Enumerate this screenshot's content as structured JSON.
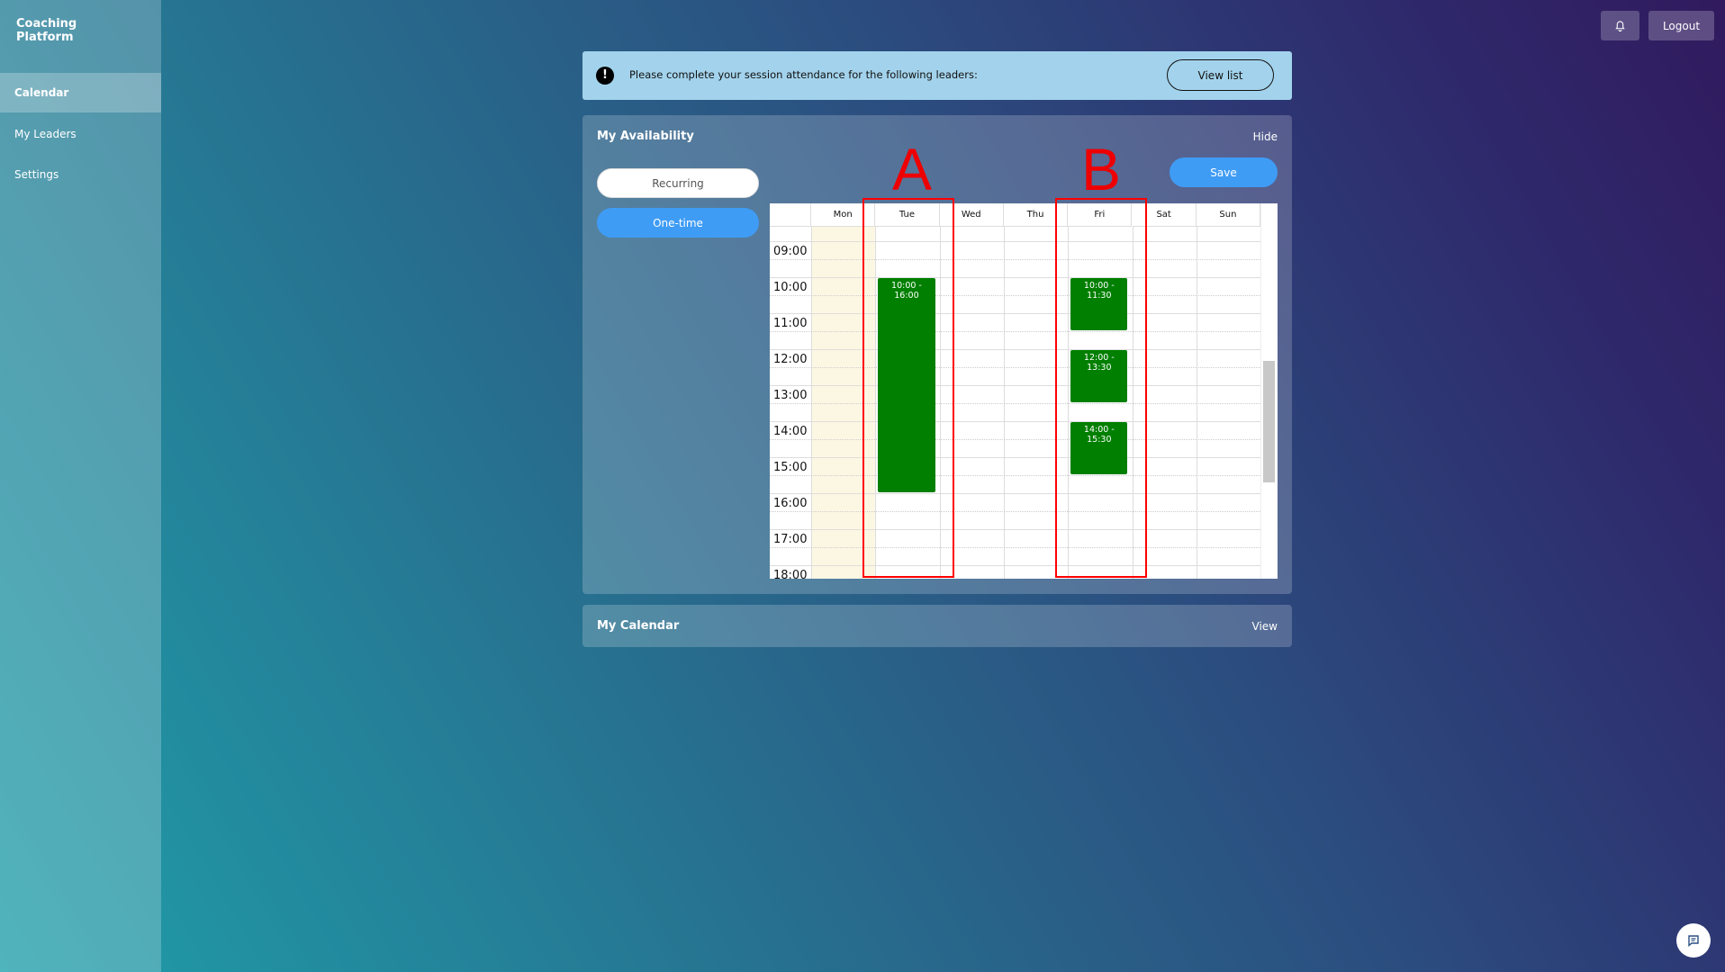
{
  "sidebar": {
    "brand": "Coaching Platform",
    "items": [
      {
        "label": "Calendar",
        "active": true
      },
      {
        "label": "My Leaders"
      },
      {
        "label": "Settings"
      }
    ]
  },
  "topbar": {
    "bell_icon": "bell-icon",
    "logout": "Logout"
  },
  "alert": {
    "icon": "exclamation-icon",
    "text": "Please complete your session attendance for the following leaders:",
    "button": "View list"
  },
  "availability": {
    "title": "My Availability",
    "hide": "Hide",
    "save": "Save",
    "modes": [
      {
        "label": "Recurring",
        "selected": false
      },
      {
        "label": "One-time",
        "selected": true
      }
    ],
    "days": [
      "Mon",
      "Tue",
      "Wed",
      "Thu",
      "Fri",
      "Sat",
      "Sun"
    ],
    "hours": [
      "09:00",
      "10:00",
      "11:00",
      "12:00",
      "13:00",
      "14:00",
      "15:00",
      "16:00",
      "17:00",
      "18:00"
    ],
    "events": [
      {
        "day": "Tue",
        "start": "10:00",
        "end": "16:00",
        "label": "10:00 - 16:00"
      },
      {
        "day": "Fri",
        "start": "10:00",
        "end": "11:30",
        "label": "10:00 - 11:30"
      },
      {
        "day": "Fri",
        "start": "12:00",
        "end": "13:30",
        "label": "12:00 - 13:30"
      },
      {
        "day": "Fri",
        "start": "14:00",
        "end": "15:30",
        "label": "14:00 - 15:30"
      }
    ],
    "event_color": "#007f00",
    "today_color": "#fcf7e3",
    "annotations": [
      {
        "label": "A",
        "day": "Tue"
      },
      {
        "label": "B",
        "day": "Fri"
      }
    ]
  },
  "calendar": {
    "title": "My Calendar",
    "view": "View"
  },
  "chat_icon": "chat-icon"
}
